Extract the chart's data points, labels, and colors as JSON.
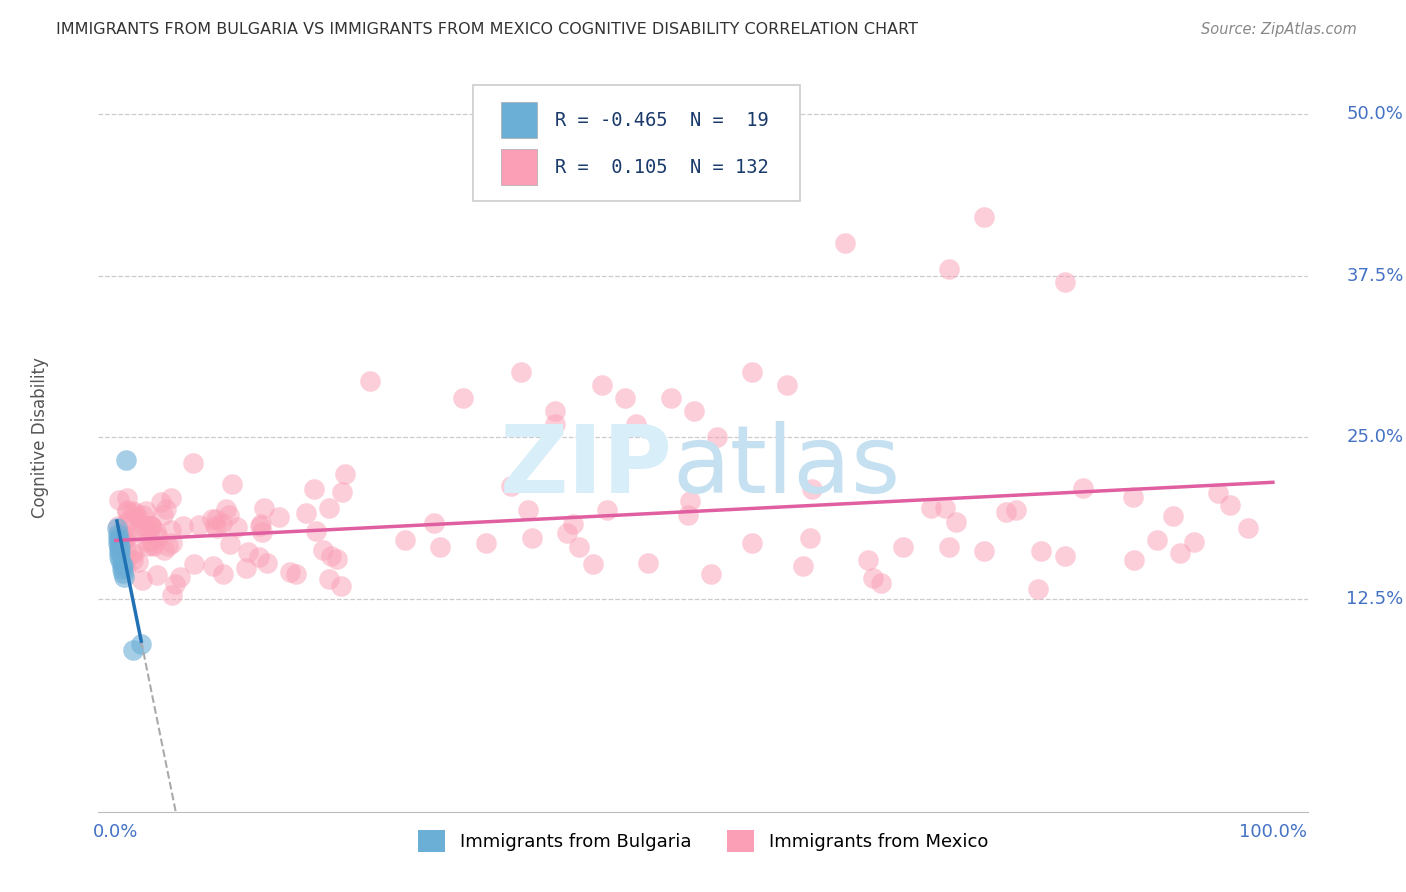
{
  "title": "IMMIGRANTS FROM BULGARIA VS IMMIGRANTS FROM MEXICO COGNITIVE DISABILITY CORRELATION CHART",
  "source": "Source: ZipAtlas.com",
  "ylabel": "Cognitive Disability",
  "ytick_labels": [
    "12.5%",
    "25.0%",
    "37.5%",
    "50.0%"
  ],
  "ytick_values": [
    0.125,
    0.25,
    0.375,
    0.5
  ],
  "legend_label1": "Immigrants from Bulgaria",
  "legend_label2": "Immigrants from Mexico",
  "R_bulgaria": -0.465,
  "N_bulgaria": 19,
  "R_mexico": 0.105,
  "N_mexico": 132,
  "color_bulgaria": "#6baed6",
  "color_mexico": "#fa9fb5",
  "color_trend_bulgaria": "#2171b5",
  "color_trend_mexico": "#e05fa0",
  "color_trend_dashed": "#aaaaaa",
  "legend_text_color": "#1a3a6b",
  "axis_label_color": "#4472C4",
  "title_color": "#333333",
  "source_color": "#888888",
  "grid_color": "#cccccc",
  "watermark_zip_color": "#d8eef8",
  "watermark_atlas_color": "#c5e0f0"
}
